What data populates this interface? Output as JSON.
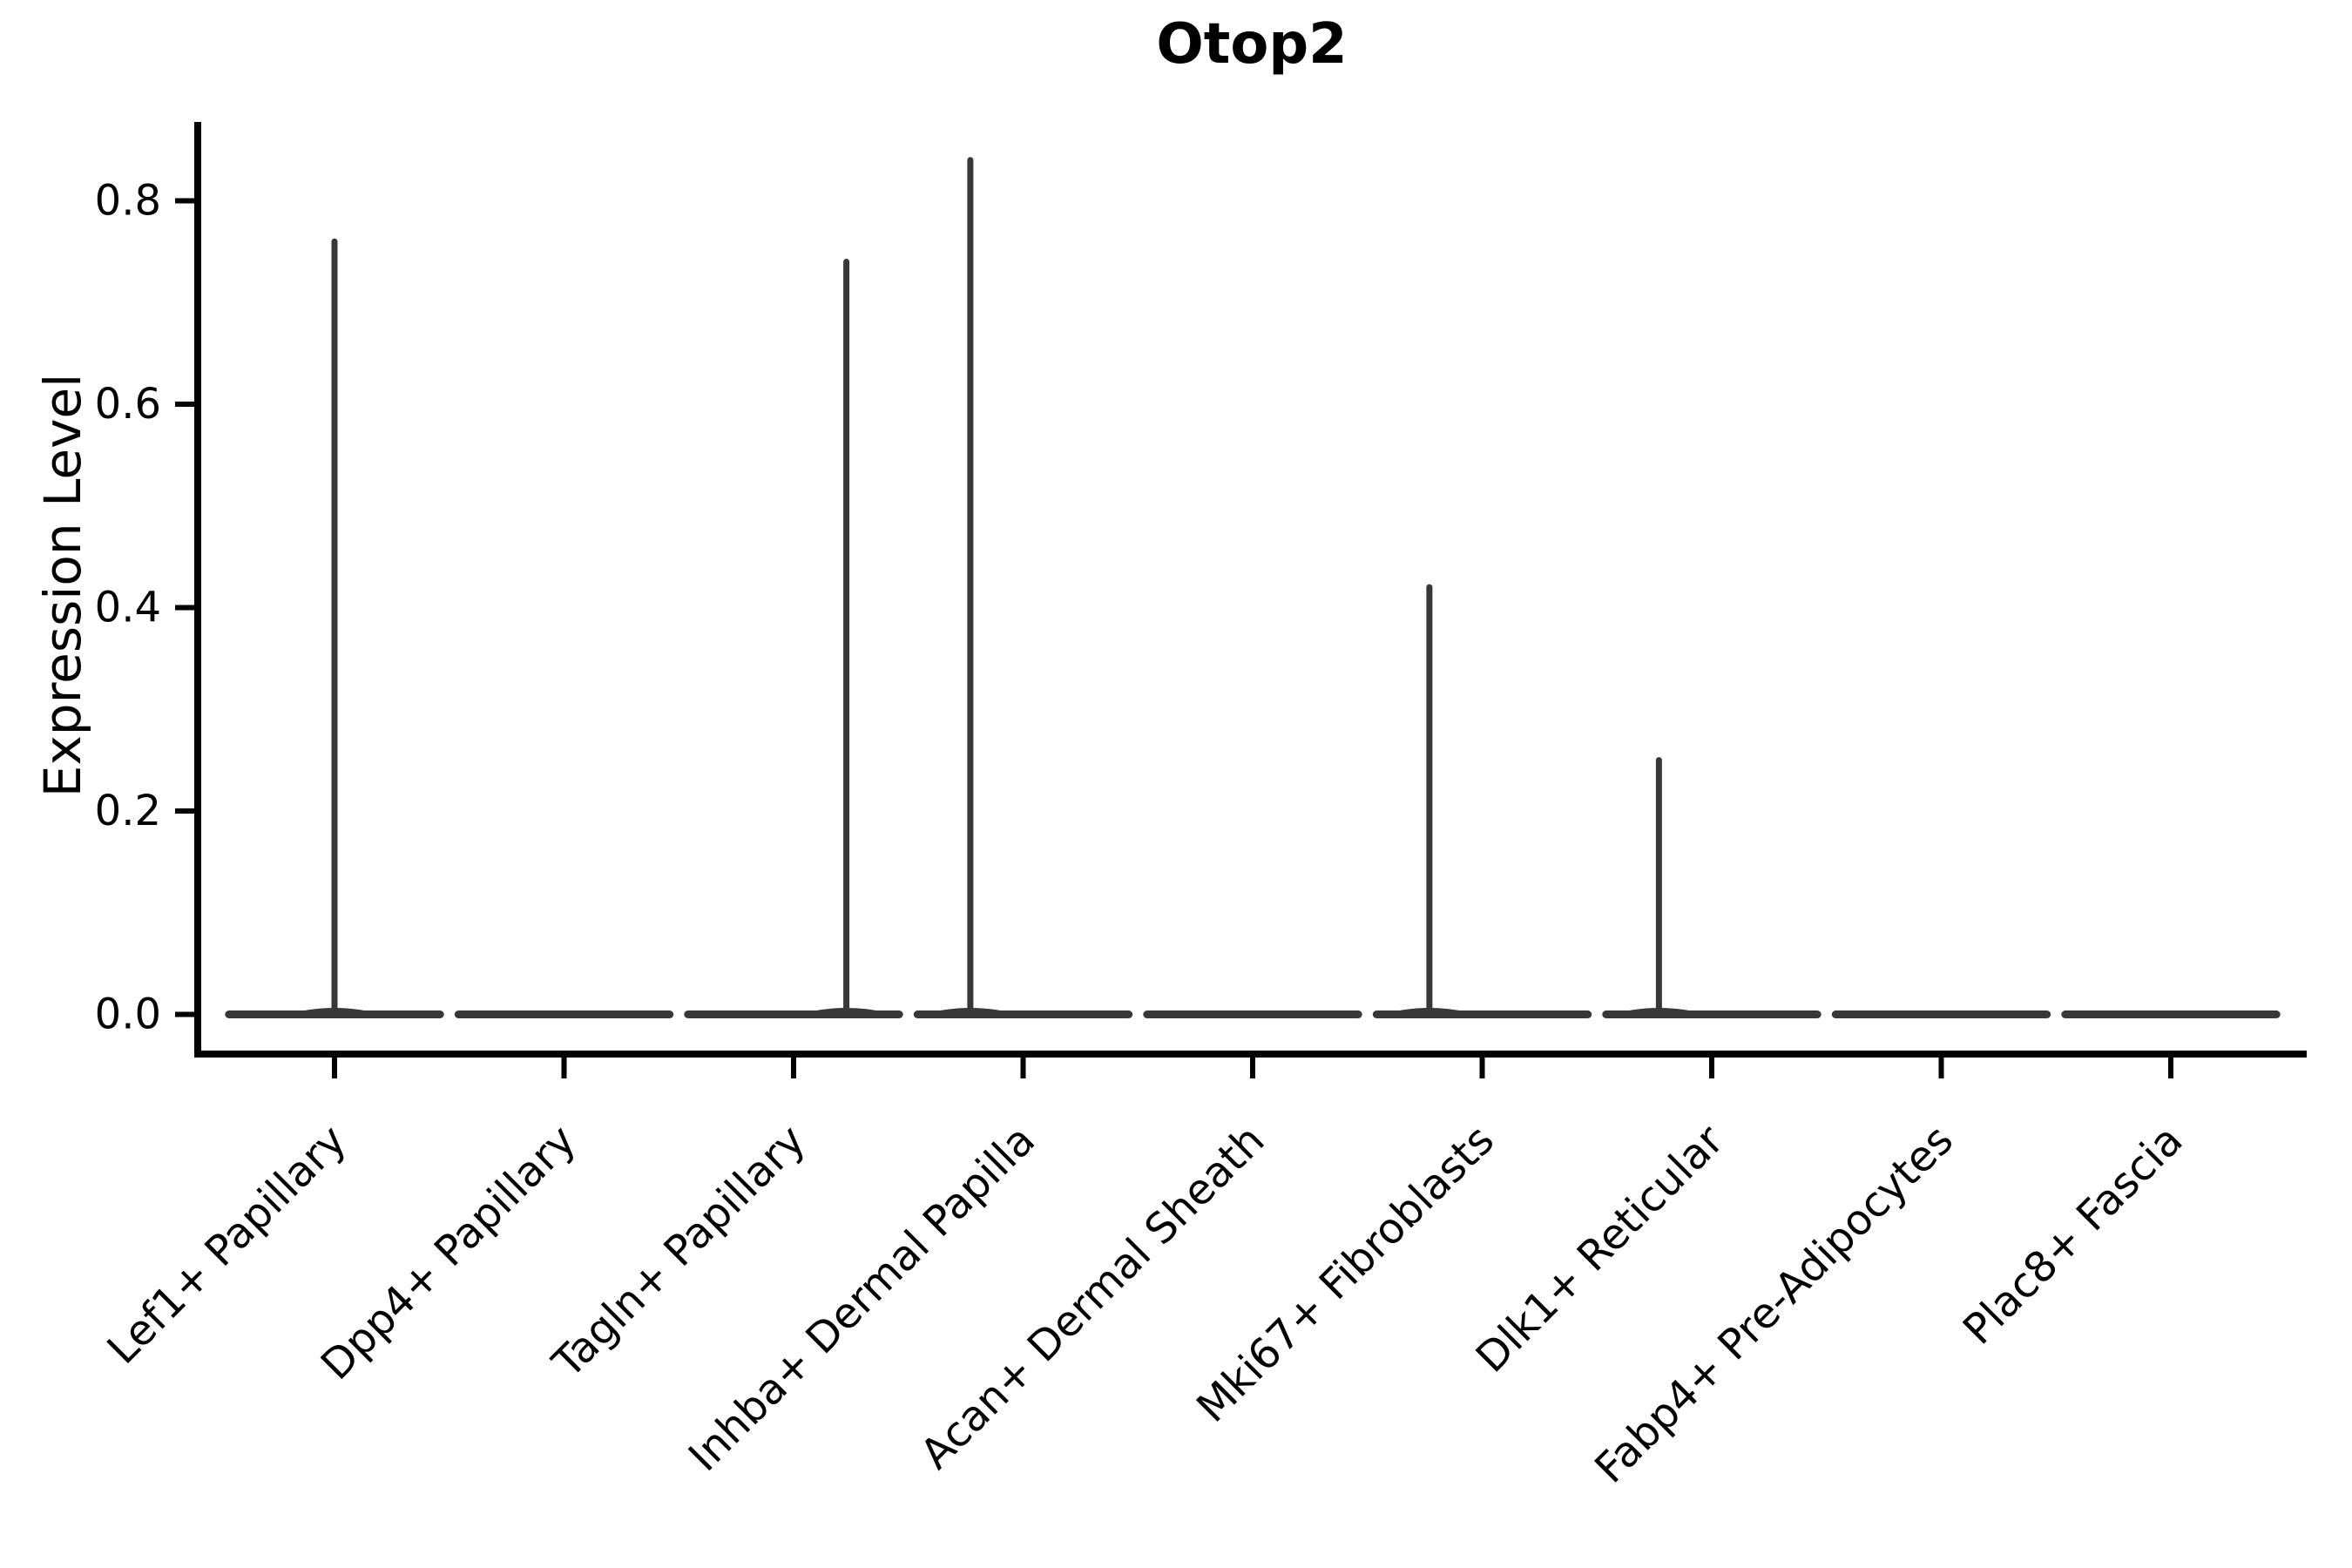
{
  "figure": {
    "title": "Otop2"
  },
  "y_axis": {
    "label": "Expression Level"
  },
  "chart_data": {
    "type": "violin",
    "title": "Otop2",
    "xlabel": "",
    "ylabel": "Expression Level",
    "ylim": [
      -0.04,
      0.88
    ],
    "yticks": [
      0.0,
      0.2,
      0.4,
      0.6,
      0.8
    ],
    "grid": false,
    "legend": "none",
    "violin_color": "#383838",
    "axis_color": "#000000",
    "categories": [
      "Lef1+ Papillary",
      "Dpp4+ Papillary",
      "Tagln+ Papillary",
      "Inhba+ Dermal Papilla",
      "Acan+ Dermal Sheath",
      "Mki67+ Fibroblasts",
      "Dlk1+ Reticular",
      "Fabp4+ Pre-Adipocytes",
      "Plac8+ Fascia"
    ],
    "series": [
      {
        "category": "Lef1+ Papillary",
        "max_expression": 0.76,
        "has_spike": true,
        "spike_offset_frac": 0.0
      },
      {
        "category": "Dpp4+ Papillary",
        "max_expression": 0.0,
        "has_spike": false,
        "spike_offset_frac": 0.0
      },
      {
        "category": "Tagln+ Papillary",
        "max_expression": 0.74,
        "has_spike": true,
        "spike_offset_frac": 0.23
      },
      {
        "category": "Inhba+ Dermal Papilla",
        "max_expression": 0.84,
        "has_spike": true,
        "spike_offset_frac": -0.23
      },
      {
        "category": "Acan+ Dermal Sheath",
        "max_expression": 0.0,
        "has_spike": false,
        "spike_offset_frac": 0.0
      },
      {
        "category": "Mki67+ Fibroblasts",
        "max_expression": 0.42,
        "has_spike": true,
        "spike_offset_frac": -0.23
      },
      {
        "category": "Dlk1+ Reticular",
        "max_expression": 0.25,
        "has_spike": true,
        "spike_offset_frac": -0.23
      },
      {
        "category": "Fabp4+ Pre-Adipocytes",
        "max_expression": 0.0,
        "has_spike": false,
        "spike_offset_frac": 0.0
      },
      {
        "category": "Plac8+ Fascia",
        "max_expression": 0.0,
        "has_spike": false,
        "spike_offset_frac": 0.0
      }
    ],
    "baseline_violin": {
      "value": 0.0,
      "halfwidth_frac": 0.46
    }
  }
}
